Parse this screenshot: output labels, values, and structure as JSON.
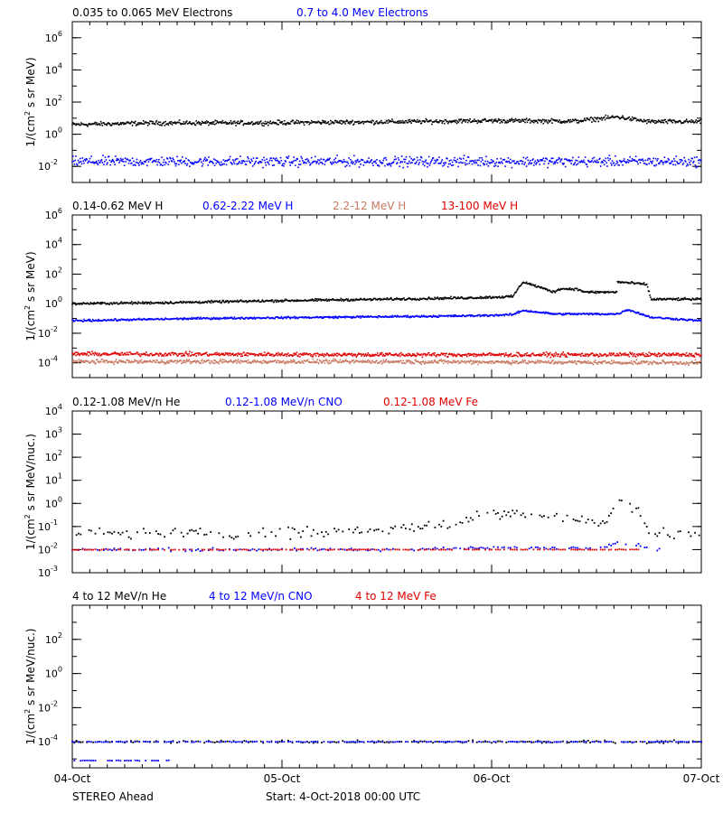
{
  "footer": {
    "spacecraft": "STEREO Ahead",
    "start": "Start:  4-Oct-2018 00:00 UTC"
  },
  "x_axis": {
    "ticks": [
      "04-Oct",
      "05-Oct",
      "06-Oct",
      "07-Oct"
    ],
    "range_days": [
      0,
      3
    ]
  },
  "chart_data": [
    {
      "type": "scatter",
      "panel": "electrons",
      "ylabel": "1/(cm2 s sr MeV)",
      "yscale": "log",
      "ylim": [
        0.001,
        10000000
      ],
      "yticks": [
        "10^-2",
        "10^0",
        "10^2",
        "10^4",
        "10^6"
      ],
      "legend": [
        {
          "name": "0.035 to 0.065 MeV Electrons",
          "color": "#000000"
        },
        {
          "name": "0.7 to 4.0 Mev Electrons",
          "color": "#0000ff"
        }
      ],
      "series": [
        {
          "name": "0.035 to 0.065 MeV Electrons",
          "color": "#000000",
          "style": "dense",
          "x_days": [
            0,
            0.4,
            0.8,
            1.2,
            1.6,
            2.0,
            2.4,
            2.6,
            2.75,
            3.0
          ],
          "y": [
            4,
            5,
            5,
            5.5,
            6,
            7,
            6.5,
            12,
            6,
            6
          ],
          "jitter": 0.2
        },
        {
          "name": "0.7 to 4.0 Mev Electrons",
          "color": "#0000ff",
          "style": "dense",
          "x_days": [
            0,
            1.0,
            2.0,
            3.0
          ],
          "y": [
            0.02,
            0.02,
            0.02,
            0.02
          ],
          "jitter": 0.45
        }
      ]
    },
    {
      "type": "scatter",
      "panel": "protons",
      "ylabel": "1/(cm2 s sr MeV)",
      "yscale": "log",
      "ylim": [
        1e-05,
        1000000
      ],
      "yticks": [
        "10^-4",
        "10^-2",
        "10^0",
        "10^2",
        "10^4",
        "10^6"
      ],
      "legend": [
        {
          "name": "0.14-0.62 MeV H",
          "color": "#000000"
        },
        {
          "name": "0.62-2.22 MeV H",
          "color": "#0000ff"
        },
        {
          "name": "2.2-12 MeV H",
          "color": "#c87860"
        },
        {
          "name": "13-100 MeV H",
          "color": "#e00000"
        }
      ],
      "series": [
        {
          "name": "0.14-0.62 MeV H",
          "color": "#000000",
          "style": "dense",
          "x_days": [
            0,
            0.5,
            1.0,
            1.5,
            1.9,
            2.1,
            2.15,
            2.3,
            2.32,
            2.4,
            2.45,
            2.6,
            2.6,
            2.74,
            2.76,
            3.0
          ],
          "y": [
            1,
            1.2,
            1.6,
            2,
            2.5,
            3,
            30,
            6,
            10,
            10,
            6,
            6,
            30,
            20,
            2,
            2
          ],
          "jitter": 0.12
        },
        {
          "name": "0.62-2.22 MeV H",
          "color": "#0000ff",
          "style": "dense",
          "x_days": [
            0,
            0.6,
            1.2,
            1.9,
            2.1,
            2.15,
            2.3,
            2.6,
            2.65,
            2.76,
            3.0
          ],
          "y": [
            0.07,
            0.1,
            0.12,
            0.15,
            0.18,
            0.35,
            0.2,
            0.2,
            0.4,
            0.12,
            0.07
          ],
          "jitter": 0.1
        },
        {
          "name": "13-100 MeV H",
          "color": "#e00000",
          "style": "dense",
          "x_days": [
            0,
            1.5,
            3.0
          ],
          "y": [
            0.0004,
            0.00035,
            0.00035
          ],
          "jitter": 0.2
        },
        {
          "name": "2.2-12 MeV H",
          "color": "#c87860",
          "style": "dense",
          "x_days": [
            0,
            1.5,
            3.0
          ],
          "y": [
            0.00012,
            0.00012,
            0.0001
          ],
          "jitter": 0.2
        }
      ]
    },
    {
      "type": "scatter",
      "panel": "low-energy-ions",
      "ylabel": "1/(cm2 s sr MeV/nuc.)",
      "yscale": "log",
      "ylim": [
        0.001,
        10000
      ],
      "yticks": [
        "10^-3",
        "10^-2",
        "10^-1",
        "10^0",
        "10^1",
        "10^2",
        "10^3",
        "10^4"
      ],
      "legend": [
        {
          "name": "0.12-1.08 MeV/n He",
          "color": "#000000"
        },
        {
          "name": "0.12-1.08 MeV/n CNO",
          "color": "#0000ff"
        },
        {
          "name": "0.12-1.08 MeV Fe",
          "color": "#e00000"
        }
      ],
      "series": [
        {
          "name": "0.12-1.08 MeV/n He",
          "color": "#000000",
          "style": "sparse",
          "x_days": [
            0,
            0.5,
            1.0,
            1.4,
            1.8,
            2.0,
            2.3,
            2.55,
            2.6,
            2.7,
            2.75,
            3.0
          ],
          "y": [
            0.05,
            0.05,
            0.05,
            0.07,
            0.12,
            0.4,
            0.3,
            0.15,
            1.5,
            0.5,
            0.05,
            0.05
          ],
          "jitter": 0.35
        },
        {
          "name": "0.12-1.08 MeV/n CNO",
          "color": "#0000ff",
          "style": "sparse",
          "x_days": [
            0.6,
            1.5,
            2.0,
            2.5,
            2.6,
            2.7,
            2.8
          ],
          "y": [
            0.01,
            0.01,
            0.012,
            0.012,
            0.02,
            0.015,
            0.01
          ],
          "jitter": 0.1
        },
        {
          "name": "0.12-1.08 MeV Fe",
          "color": "#e00000",
          "style": "sparse",
          "x_days": [
            0.15,
            0.7,
            1.5,
            2.3,
            2.6,
            2.7
          ],
          "y": [
            0.01,
            0.01,
            0.01,
            0.01,
            0.01,
            0.01
          ],
          "jitter": 0.02
        }
      ]
    },
    {
      "type": "scatter",
      "panel": "high-energy-ions",
      "ylabel": "1/(cm2 s sr MeV/nuc.)",
      "yscale": "log",
      "ylim": [
        3e-06,
        10000
      ],
      "yticks": [
        "10^-4",
        "10^-2",
        "10^0",
        "10^2"
      ],
      "legend": [
        {
          "name": "4 to 12 MeV/n He",
          "color": "#000000"
        },
        {
          "name": "4 to 12 MeV/n CNO",
          "color": "#0000ff"
        },
        {
          "name": "4 to 12 MeV Fe",
          "color": "#e00000"
        }
      ],
      "series": [
        {
          "name": "4 to 12 MeV/n He",
          "color": "#000000",
          "style": "sparse",
          "x_days": [
            0,
            1.5,
            3.0
          ],
          "y": [
            0.0001,
            0.0001,
            0.0001
          ],
          "jitter": 0.12
        },
        {
          "name": "4 to 12 MeV/n CNO",
          "color": "#0000ff",
          "style": "sparse",
          "x_days": [
            0,
            1.5,
            3.0
          ],
          "y": [
            0.0001,
            0.0001,
            0.0001
          ],
          "jitter": 0.03
        },
        {
          "name": "4 to 12 MeV/n CNO",
          "color": "#0000ff",
          "style": "sparse",
          "x_days": [
            0,
            0.5
          ],
          "y": [
            8e-06,
            8e-06
          ],
          "jitter": 0.02
        }
      ]
    }
  ]
}
